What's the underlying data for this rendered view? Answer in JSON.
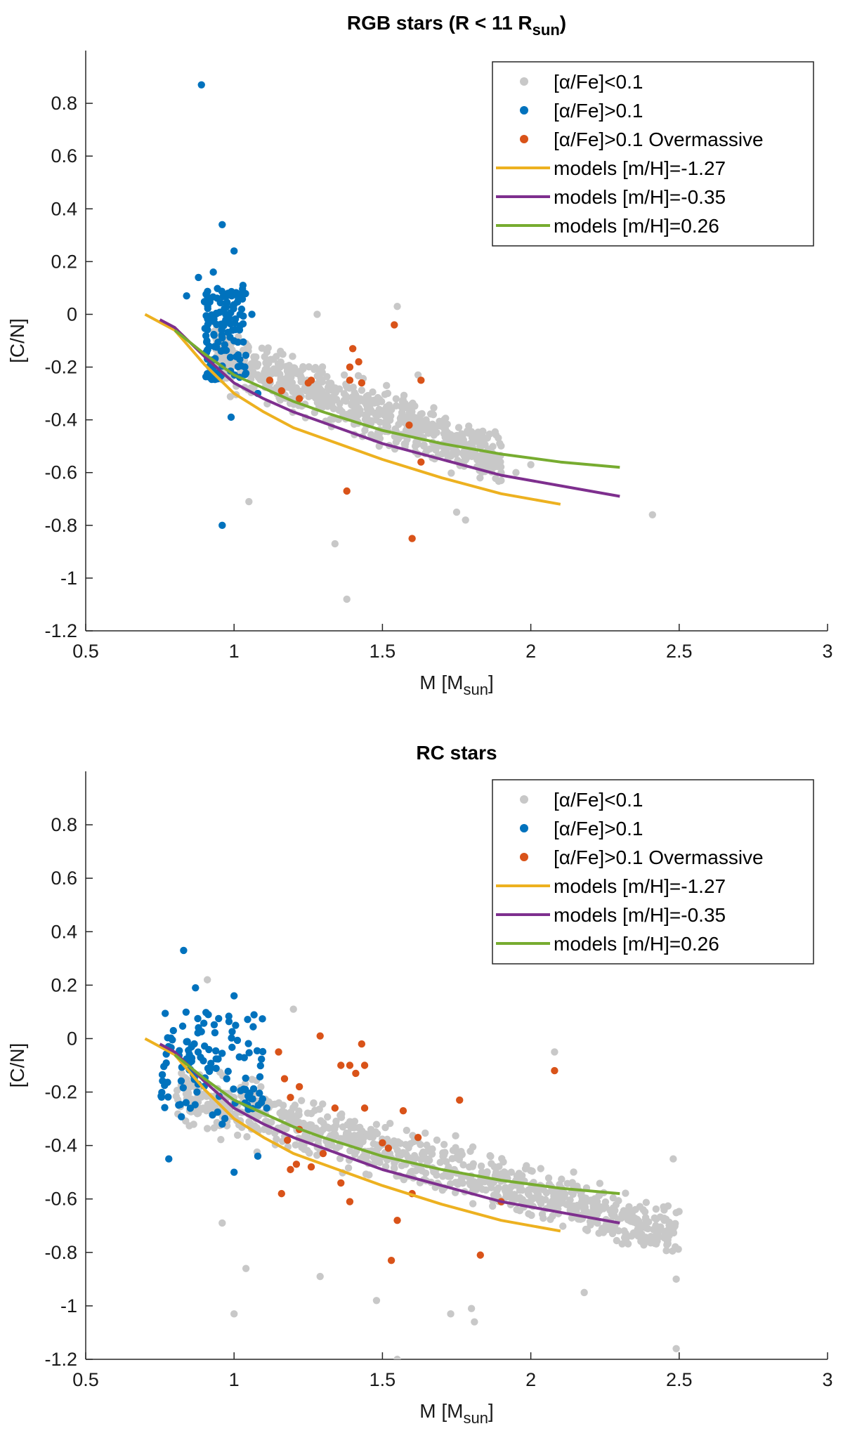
{
  "chart_data": [
    {
      "type": "scatter",
      "title_main": "RGB stars (R < 11 R",
      "title_sub": "sun",
      "title_end": ")",
      "xlabel_main": "M [M",
      "xlabel_sub": "sun",
      "xlabel_end": "]",
      "ylabel": "[C/N]",
      "xlim": [
        0.5,
        3
      ],
      "ylim": [
        -1.2,
        1.0
      ],
      "xticks": [
        "0.5",
        "1",
        "1.5",
        "2",
        "2.5",
        "3"
      ],
      "yticks": [
        "-1.2",
        "-1",
        "-0.8",
        "-0.6",
        "-0.4",
        "-0.2",
        "0",
        "0.2",
        "0.4",
        "0.6",
        "0.8"
      ],
      "legend": {
        "position": "top-right",
        "entries": [
          "[α/Fe]<0.1",
          "[α/Fe]>0.1",
          "[α/Fe]>0.1 Overmassive",
          "models [m/H]=-1.27",
          "models [m/H]=-0.35",
          "models [m/H]=0.26"
        ]
      },
      "colors": {
        "low_alpha": "#c8c8c8",
        "high_alpha": "#0072bd",
        "overmassive": "#d95319",
        "m127": "#edb120",
        "m035": "#7e2f8e",
        "m026": "#77ac30"
      },
      "series": [
        {
          "name": "[α/Fe]<0.1",
          "kind": "scatter",
          "color": "#c8c8c8",
          "cluster": {
            "x_range": [
              0.92,
              1.9
            ],
            "y_min_start": -0.3,
            "y_min_slope": -0.4,
            "y_max_start": 0.0,
            "y_max_slope": -0.42,
            "count": 700,
            "seed": 11
          },
          "points": [
            [
              2.41,
              -0.76
            ],
            [
              1.38,
              -1.08
            ],
            [
              1.34,
              -0.87
            ],
            [
              1.55,
              0.03
            ],
            [
              1.78,
              -0.78
            ],
            [
              1.9,
              -0.63
            ],
            [
              2.0,
              -0.57
            ],
            [
              1.05,
              -0.71
            ],
            [
              1.28,
              0.0
            ],
            [
              1.62,
              -0.23
            ],
            [
              1.75,
              -0.75
            ],
            [
              1.95,
              -0.6
            ]
          ]
        },
        {
          "name": "[α/Fe]>0.1",
          "kind": "scatter",
          "color": "#0072bd",
          "cluster": {
            "x_range": [
              0.9,
              1.04
            ],
            "y_range": [
              -0.25,
              0.1
            ],
            "count": 130,
            "seed": 23
          },
          "points": [
            [
              0.89,
              0.87
            ],
            [
              0.96,
              0.34
            ],
            [
              1.0,
              0.24
            ],
            [
              0.96,
              -0.8
            ],
            [
              0.99,
              -0.39
            ],
            [
              0.88,
              0.14
            ],
            [
              0.84,
              0.07
            ],
            [
              0.93,
              0.16
            ],
            [
              1.06,
              0.0
            ],
            [
              1.08,
              -0.3
            ],
            [
              0.91,
              -0.17
            ],
            [
              1.03,
              0.11
            ]
          ]
        },
        {
          "name": "[α/Fe]>0.1 Overmassive",
          "kind": "scatter",
          "color": "#d95319",
          "points": [
            [
              1.54,
              -0.04
            ],
            [
              1.4,
              -0.13
            ],
            [
              1.42,
              -0.18
            ],
            [
              1.39,
              -0.2
            ],
            [
              1.63,
              -0.25
            ],
            [
              1.43,
              -0.26
            ],
            [
              1.39,
              -0.25
            ],
            [
              1.12,
              -0.25
            ],
            [
              1.16,
              -0.29
            ],
            [
              1.26,
              -0.25
            ],
            [
              1.25,
              -0.26
            ],
            [
              1.22,
              -0.32
            ],
            [
              1.59,
              -0.42
            ],
            [
              1.63,
              -0.56
            ],
            [
              1.38,
              -0.67
            ],
            [
              1.6,
              -0.85
            ]
          ]
        },
        {
          "name": "models [m/H]=-1.27",
          "kind": "line",
          "color": "#edb120",
          "x": [
            0.7,
            0.8,
            0.9,
            1.0,
            1.1,
            1.2,
            1.3,
            1.5,
            1.7,
            1.9,
            2.1
          ],
          "y": [
            0.0,
            -0.06,
            -0.19,
            -0.3,
            -0.37,
            -0.43,
            -0.47,
            -0.55,
            -0.62,
            -0.68,
            -0.72
          ]
        },
        {
          "name": "models [m/H]=-0.35",
          "kind": "line",
          "color": "#7e2f8e",
          "x": [
            0.75,
            0.8,
            0.9,
            1.0,
            1.1,
            1.2,
            1.3,
            1.5,
            1.7,
            1.9,
            2.1,
            2.3
          ],
          "y": [
            -0.02,
            -0.05,
            -0.16,
            -0.26,
            -0.32,
            -0.37,
            -0.41,
            -0.49,
            -0.55,
            -0.61,
            -0.65,
            -0.69
          ]
        },
        {
          "name": "models [m/H]=0.26",
          "kind": "line",
          "color": "#77ac30",
          "x": [
            0.8,
            0.9,
            1.0,
            1.1,
            1.2,
            1.3,
            1.5,
            1.7,
            1.9,
            2.1,
            2.3
          ],
          "y": [
            -0.06,
            -0.15,
            -0.23,
            -0.28,
            -0.33,
            -0.37,
            -0.44,
            -0.49,
            -0.53,
            -0.56,
            -0.58
          ]
        }
      ]
    },
    {
      "type": "scatter",
      "title_main": "RC stars",
      "title_sub": "",
      "title_end": "",
      "xlabel_main": "M [M",
      "xlabel_sub": "sun",
      "xlabel_end": "]",
      "ylabel": "[C/N]",
      "xlim": [
        0.5,
        3
      ],
      "ylim": [
        -1.2,
        1.0
      ],
      "xticks": [
        "0.5",
        "1",
        "1.5",
        "2",
        "2.5",
        "3"
      ],
      "yticks": [
        "-1.2",
        "-1",
        "-0.8",
        "-0.6",
        "-0.4",
        "-0.2",
        "0",
        "0.2",
        "0.4",
        "0.6",
        "0.8"
      ],
      "legend": {
        "position": "top-right",
        "entries": [
          "[α/Fe]<0.1",
          "[α/Fe]>0.1",
          "[α/Fe]>0.1 Overmassive",
          "models [m/H]=-1.27",
          "models [m/H]=-0.35",
          "models [m/H]=0.26"
        ]
      },
      "colors": {
        "low_alpha": "#c8c8c8",
        "high_alpha": "#0072bd",
        "overmassive": "#d95319",
        "m127": "#edb120",
        "m035": "#7e2f8e",
        "m026": "#77ac30"
      },
      "series": [
        {
          "name": "[α/Fe]<0.1",
          "kind": "scatter",
          "color": "#c8c8c8",
          "cluster": {
            "x_range": [
              0.8,
              2.5
            ],
            "y_min_start": -0.35,
            "y_min_slope": -0.3,
            "y_max_start": -0.05,
            "y_max_slope": -0.32,
            "count": 900,
            "seed": 37
          },
          "points": [
            [
              1.0,
              -1.03
            ],
            [
              0.96,
              -0.69
            ],
            [
              1.04,
              -0.86
            ],
            [
              1.29,
              -0.89
            ],
            [
              1.48,
              -0.98
            ],
            [
              1.55,
              -1.2
            ],
            [
              1.73,
              -1.03
            ],
            [
              1.81,
              -1.06
            ],
            [
              1.8,
              -1.01
            ],
            [
              2.49,
              -1.16
            ],
            [
              2.48,
              -0.45
            ],
            [
              2.08,
              -0.05
            ],
            [
              1.2,
              0.11
            ],
            [
              0.91,
              0.22
            ],
            [
              2.18,
              -0.95
            ],
            [
              2.49,
              -0.9
            ]
          ]
        },
        {
          "name": "[α/Fe]>0.1",
          "kind": "scatter",
          "color": "#0072bd",
          "cluster": {
            "x_range": [
              0.75,
              1.1
            ],
            "y_range": [
              -0.3,
              0.1
            ],
            "count": 120,
            "seed": 41
          },
          "points": [
            [
              0.83,
              0.33
            ],
            [
              0.87,
              0.19
            ],
            [
              1.0,
              0.16
            ],
            [
              0.78,
              -0.45
            ],
            [
              1.0,
              -0.5
            ],
            [
              1.08,
              -0.44
            ],
            [
              1.05,
              -0.22
            ],
            [
              0.96,
              -0.32
            ],
            [
              1.11,
              -0.26
            ]
          ]
        },
        {
          "name": "[α/Fe]>0.1 Overmassive",
          "kind": "scatter",
          "color": "#d95319",
          "points": [
            [
              1.29,
              0.01
            ],
            [
              1.43,
              -0.02
            ],
            [
              1.15,
              -0.05
            ],
            [
              2.08,
              -0.12
            ],
            [
              1.39,
              -0.1
            ],
            [
              1.44,
              -0.1
            ],
            [
              1.41,
              -0.13
            ],
            [
              1.36,
              -0.1
            ],
            [
              1.17,
              -0.15
            ],
            [
              1.22,
              -0.18
            ],
            [
              1.19,
              -0.22
            ],
            [
              1.34,
              -0.26
            ],
            [
              1.44,
              -0.26
            ],
            [
              1.57,
              -0.27
            ],
            [
              1.76,
              -0.23
            ],
            [
              1.62,
              -0.37
            ],
            [
              1.22,
              -0.34
            ],
            [
              1.18,
              -0.38
            ],
            [
              1.3,
              -0.43
            ],
            [
              1.21,
              -0.47
            ],
            [
              1.19,
              -0.49
            ],
            [
              1.26,
              -0.48
            ],
            [
              1.52,
              -0.41
            ],
            [
              1.5,
              -0.39
            ],
            [
              1.36,
              -0.54
            ],
            [
              1.39,
              -0.61
            ],
            [
              1.16,
              -0.58
            ],
            [
              1.55,
              -0.68
            ],
            [
              1.53,
              -0.83
            ],
            [
              1.83,
              -0.81
            ],
            [
              1.9,
              -0.61
            ],
            [
              1.6,
              -0.58
            ]
          ]
        },
        {
          "name": "models [m/H]=-1.27",
          "kind": "line",
          "color": "#edb120",
          "x": [
            0.7,
            0.8,
            0.9,
            1.0,
            1.1,
            1.2,
            1.3,
            1.5,
            1.7,
            1.9,
            2.1
          ],
          "y": [
            0.0,
            -0.06,
            -0.19,
            -0.3,
            -0.37,
            -0.43,
            -0.47,
            -0.55,
            -0.62,
            -0.68,
            -0.72
          ]
        },
        {
          "name": "models [m/H]=-0.35",
          "kind": "line",
          "color": "#7e2f8e",
          "x": [
            0.75,
            0.8,
            0.9,
            1.0,
            1.1,
            1.2,
            1.3,
            1.5,
            1.7,
            1.9,
            2.1,
            2.3
          ],
          "y": [
            -0.02,
            -0.05,
            -0.16,
            -0.26,
            -0.32,
            -0.37,
            -0.41,
            -0.49,
            -0.55,
            -0.61,
            -0.65,
            -0.69
          ]
        },
        {
          "name": "models [m/H]=0.26",
          "kind": "line",
          "color": "#77ac30",
          "x": [
            0.8,
            0.9,
            1.0,
            1.1,
            1.2,
            1.3,
            1.5,
            1.7,
            1.9,
            2.1,
            2.3
          ],
          "y": [
            -0.06,
            -0.15,
            -0.23,
            -0.28,
            -0.33,
            -0.37,
            -0.44,
            -0.49,
            -0.53,
            -0.56,
            -0.58
          ]
        }
      ]
    }
  ]
}
